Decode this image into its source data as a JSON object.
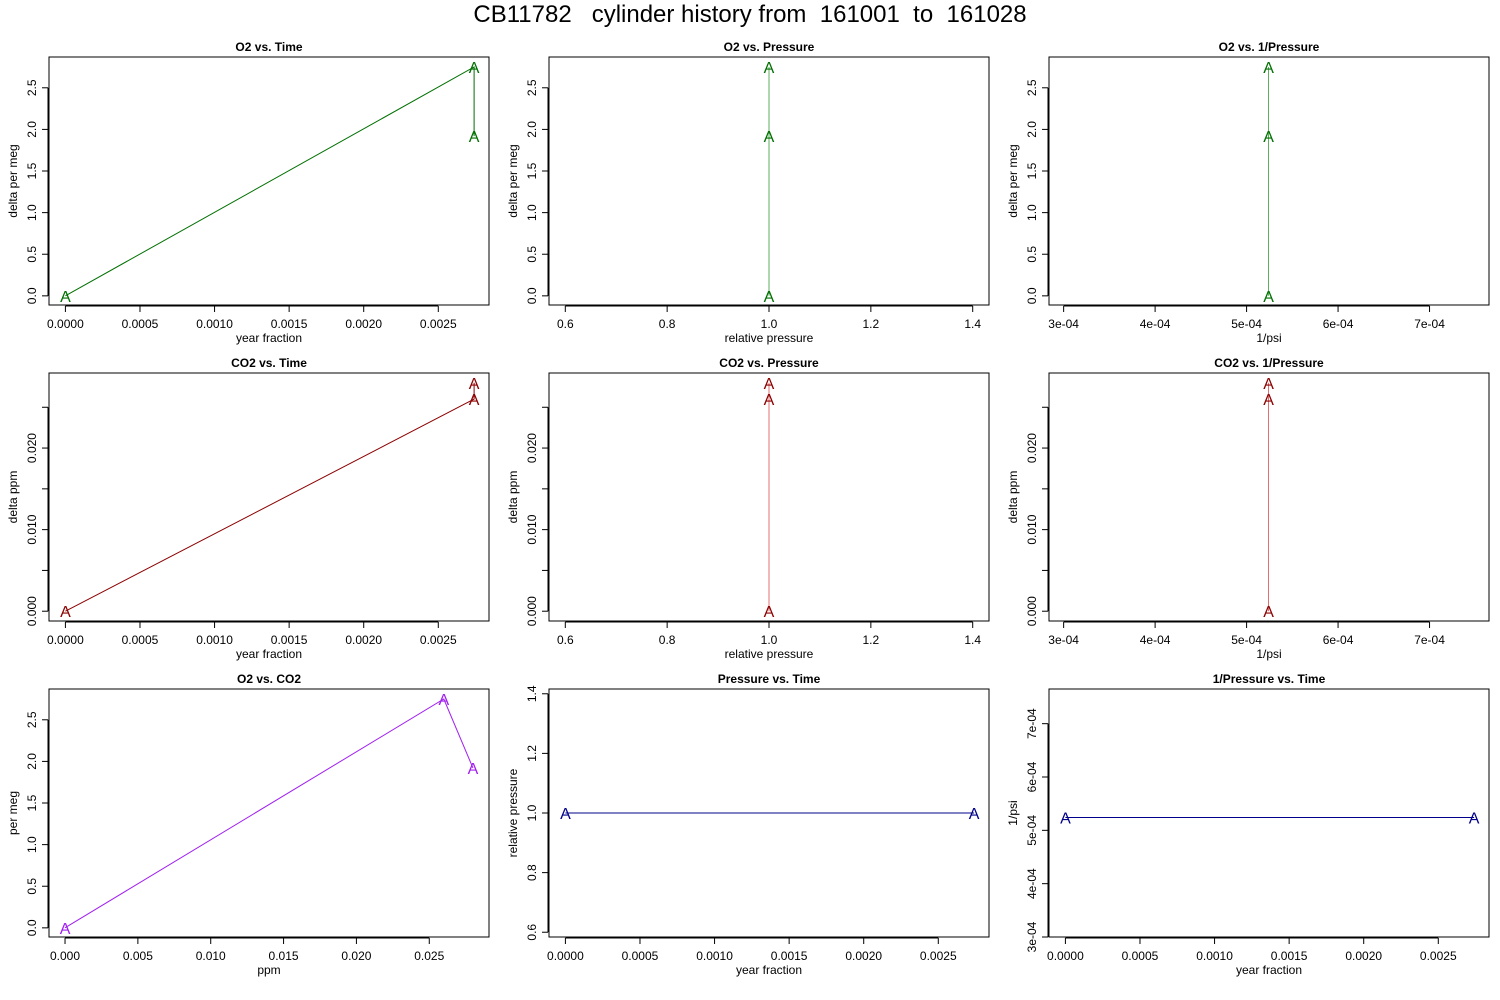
{
  "figure": {
    "title": "CB11782   cylinder history from  161001  to  161028"
  },
  "chart_data": [
    {
      "type": "line",
      "title": "O2 vs. Time",
      "xlabel": "year fraction",
      "ylabel": "delta per meg",
      "xlim": [
        -0.00011,
        0.00284
      ],
      "ylim": [
        -0.11,
        2.87
      ],
      "xticks": [
        0,
        0.0005,
        0.001,
        0.0015,
        0.002,
        0.0025
      ],
      "xticklabels": [
        "0.0000",
        "0.0005",
        "0.0010",
        "0.0015",
        "0.0020",
        "0.0025"
      ],
      "yticks": [
        0,
        0.5,
        1,
        1.5,
        2,
        2.5
      ],
      "yticklabels": [
        "0.0",
        "0.5",
        "1.0",
        "1.5",
        "2.0",
        "2.5"
      ],
      "color": "#007000",
      "line_color": "#007000",
      "marker": "A",
      "series": [
        {
          "x": [
            0,
            0.00274,
            0.00274
          ],
          "y": [
            0,
            2.75,
            1.92
          ]
        }
      ]
    },
    {
      "type": "line",
      "title": "O2 vs. Pressure",
      "xlabel": "relative pressure",
      "ylabel": "delta per meg",
      "xlim": [
        0.568,
        1.432
      ],
      "ylim": [
        -0.11,
        2.87
      ],
      "xticks": [
        0.6,
        0.8,
        1.0,
        1.2,
        1.4
      ],
      "xticklabels": [
        "0.6",
        "0.8",
        "1.0",
        "1.2",
        "1.4"
      ],
      "yticks": [
        0,
        0.5,
        1,
        1.5,
        2,
        2.5
      ],
      "yticklabels": [
        "0.0",
        "0.5",
        "1.0",
        "1.5",
        "2.0",
        "2.5"
      ],
      "color": "#007000",
      "line_color": "#5fae5f",
      "marker": "A",
      "series": [
        {
          "x": [
            1,
            1,
            1
          ],
          "y": [
            0,
            2.75,
            1.92
          ]
        }
      ]
    },
    {
      "type": "line",
      "title": "O2 vs. 1/Pressure",
      "xlabel": "1/psi",
      "ylabel": "delta per meg",
      "xlim": [
        0.000284,
        0.000765
      ],
      "ylim": [
        -0.11,
        2.87
      ],
      "xticks": [
        0.0003,
        0.0004,
        0.0005,
        0.0006,
        0.0007
      ],
      "xticklabels": [
        "3e-04",
        "4e-04",
        "5e-04",
        "6e-04",
        "7e-04"
      ],
      "yticks": [
        0,
        0.5,
        1,
        1.5,
        2,
        2.5
      ],
      "yticklabels": [
        "0.0",
        "0.5",
        "1.0",
        "1.5",
        "2.0",
        "2.5"
      ],
      "color": "#007000",
      "line_color": "#5fae5f",
      "marker": "A",
      "series": [
        {
          "x": [
            0.000524,
            0.000524,
            0.000524
          ],
          "y": [
            0,
            2.75,
            1.92
          ]
        }
      ]
    },
    {
      "type": "line",
      "title": "CO2 vs. Time",
      "xlabel": "year fraction",
      "ylabel": "delta ppm",
      "xlim": [
        -0.00011,
        0.00284
      ],
      "ylim": [
        -0.0012,
        0.0292
      ],
      "xticks": [
        0,
        0.0005,
        0.001,
        0.0015,
        0.002,
        0.0025
      ],
      "xticklabels": [
        "0.0000",
        "0.0005",
        "0.0010",
        "0.0015",
        "0.0020",
        "0.0025"
      ],
      "yticks": [
        0,
        0.005,
        0.01,
        0.015,
        0.02,
        0.025
      ],
      "yticklabels": [
        "0.000",
        "",
        "0.010",
        "",
        "0.020",
        ""
      ],
      "color": "#8b0000",
      "line_color": "#8b0000",
      "marker": "A",
      "series": [
        {
          "x": [
            0,
            0.00274,
            0.00274
          ],
          "y": [
            0,
            0.026,
            0.028
          ]
        }
      ]
    },
    {
      "type": "line",
      "title": "CO2 vs. Pressure",
      "xlabel": "relative pressure",
      "ylabel": "delta ppm",
      "xlim": [
        0.568,
        1.432
      ],
      "ylim": [
        -0.0012,
        0.0292
      ],
      "xticks": [
        0.6,
        0.8,
        1.0,
        1.2,
        1.4
      ],
      "xticklabels": [
        "0.6",
        "0.8",
        "1.0",
        "1.2",
        "1.4"
      ],
      "yticks": [
        0,
        0.005,
        0.01,
        0.015,
        0.02,
        0.025
      ],
      "yticklabels": [
        "0.000",
        "",
        "0.010",
        "",
        "0.020",
        ""
      ],
      "color": "#8b0000",
      "line_color": "#e07070",
      "marker": "A",
      "series": [
        {
          "x": [
            1,
            1,
            1
          ],
          "y": [
            0,
            0.026,
            0.028
          ]
        }
      ]
    },
    {
      "type": "line",
      "title": "CO2 vs. 1/Pressure",
      "xlabel": "1/psi",
      "ylabel": "delta ppm",
      "xlim": [
        0.000284,
        0.000765
      ],
      "ylim": [
        -0.0012,
        0.0292
      ],
      "xticks": [
        0.0003,
        0.0004,
        0.0005,
        0.0006,
        0.0007
      ],
      "xticklabels": [
        "3e-04",
        "4e-04",
        "5e-04",
        "6e-04",
        "7e-04"
      ],
      "yticks": [
        0,
        0.005,
        0.01,
        0.015,
        0.02,
        0.025
      ],
      "yticklabels": [
        "0.000",
        "",
        "0.010",
        "",
        "0.020",
        ""
      ],
      "color": "#8b0000",
      "line_color": "#e07070",
      "marker": "A",
      "series": [
        {
          "x": [
            0.000524,
            0.000524,
            0.000524
          ],
          "y": [
            0,
            0.026,
            0.028
          ]
        }
      ]
    },
    {
      "type": "line",
      "title": "O2 vs. CO2",
      "xlabel": "ppm",
      "ylabel": "per meg",
      "xlim": [
        -0.0011,
        0.0291
      ],
      "ylim": [
        -0.11,
        2.87
      ],
      "xticks": [
        0,
        0.005,
        0.01,
        0.015,
        0.02,
        0.025
      ],
      "xticklabels": [
        "0.000",
        "0.005",
        "0.010",
        "0.015",
        "0.020",
        "0.025"
      ],
      "yticks": [
        0,
        0.5,
        1,
        1.5,
        2,
        2.5
      ],
      "yticklabels": [
        "0.0",
        "0.5",
        "1.0",
        "1.5",
        "2.0",
        "2.5"
      ],
      "color": "#a020f0",
      "line_color": "#a020f0",
      "marker": "A",
      "series": [
        {
          "x": [
            0,
            0.026,
            0.028
          ],
          "y": [
            0,
            2.75,
            1.92
          ]
        }
      ]
    },
    {
      "type": "line",
      "title": "Pressure vs. Time",
      "xlabel": "year fraction",
      "ylabel": "relative pressure",
      "xlim": [
        -0.00011,
        0.00284
      ],
      "ylim": [
        0.584,
        1.416
      ],
      "xticks": [
        0,
        0.0005,
        0.001,
        0.0015,
        0.002,
        0.0025
      ],
      "xticklabels": [
        "0.0000",
        "0.0005",
        "0.0010",
        "0.0015",
        "0.0020",
        "0.0025"
      ],
      "yticks": [
        0.6,
        0.8,
        1.0,
        1.2,
        1.4
      ],
      "yticklabels": [
        "0.6",
        "0.8",
        "1.0",
        "1.2",
        "1.4"
      ],
      "color": "#00008b",
      "line_color": "#00008b",
      "marker": "A",
      "series": [
        {
          "x": [
            0,
            0.00274
          ],
          "y": [
            1,
            1
          ]
        }
      ]
    },
    {
      "type": "line",
      "title": "1/Pressure vs. Time",
      "xlabel": "year fraction",
      "ylabel": "1/psi",
      "xlim": [
        -0.00011,
        0.00284
      ],
      "ylim": [
        0.0003,
        0.000765
      ],
      "xticks": [
        0,
        0.0005,
        0.001,
        0.0015,
        0.002,
        0.0025
      ],
      "xticklabels": [
        "0.0000",
        "0.0005",
        "0.0010",
        "0.0015",
        "0.0020",
        "0.0025"
      ],
      "yticks": [
        0.0003,
        0.0004,
        0.0005,
        0.0006,
        0.0007
      ],
      "yticklabels": [
        "3e-04",
        "4e-04",
        "5e-04",
        "6e-04",
        "7e-04"
      ],
      "color": "#00008b",
      "line_color": "#00008b",
      "marker": "A",
      "series": [
        {
          "x": [
            0,
            0.00274
          ],
          "y": [
            0.000524,
            0.000524
          ]
        }
      ]
    }
  ]
}
